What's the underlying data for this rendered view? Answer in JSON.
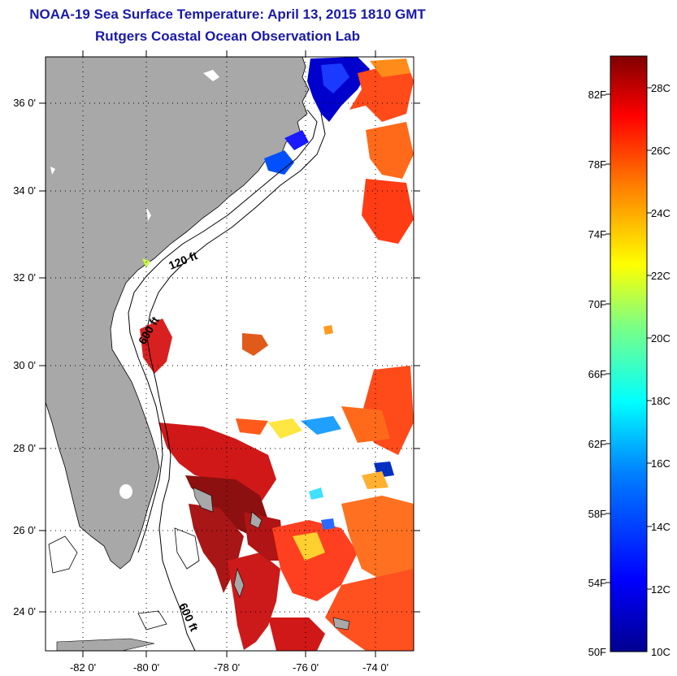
{
  "title": "NOAA-19 Sea Surface Temperature:  April 13, 2015 1810 GMT",
  "subtitle": "Rutgers Coastal Ocean Observation Lab",
  "map": {
    "lat_ticks": [
      "36 0'",
      "34 0'",
      "32 0'",
      "30 0'",
      "28 0'",
      "26 0'",
      "24 0'"
    ],
    "lon_ticks": [
      "-82 0'",
      "-80 0'",
      "-78 0'",
      "-76 0'",
      "-74 0'"
    ],
    "lon_range": [
      -83,
      -73
    ],
    "lat_range": [
      23,
      37
    ],
    "land_color": "#a8a8a8",
    "isobath_labels": [
      "120 ft",
      "600 ft",
      "600 ft"
    ]
  },
  "colorbar": {
    "fahrenheit_labels": [
      "82F",
      "78F",
      "74F",
      "70F",
      "66F",
      "62F",
      "58F",
      "54F",
      "50F"
    ],
    "celsius_labels": [
      "28C",
      "26C",
      "24C",
      "22C",
      "20C",
      "18C",
      "16C",
      "14C",
      "12C",
      "10C"
    ],
    "range_c": [
      10,
      29
    ],
    "colors": [
      "#00008f",
      "#0000ff",
      "#0080ff",
      "#00ffff",
      "#80ff80",
      "#ffff00",
      "#ff8000",
      "#ff0000",
      "#800000"
    ]
  }
}
